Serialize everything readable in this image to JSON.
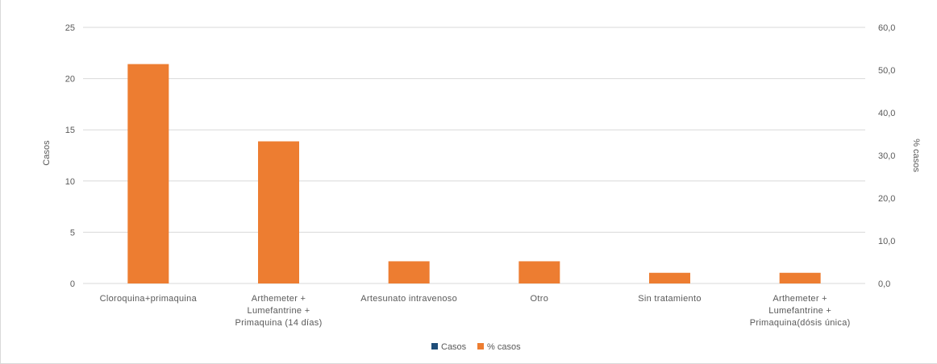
{
  "colors": {
    "casos": "#1F4E79",
    "pct_casos": "#ED7D31",
    "gridline": "#D9D9D9",
    "text": "#595959"
  },
  "chart_data": {
    "type": "bar",
    "title": "",
    "ylabel": "Casos",
    "y2label": "% casos",
    "ylim": [
      0,
      25
    ],
    "y2lim": [
      0,
      60
    ],
    "yticks": [
      "0",
      "5",
      "10",
      "15",
      "20",
      "25"
    ],
    "y2ticks": [
      "0,0",
      "10,0",
      "20,0",
      "30,0",
      "40,0",
      "50,0",
      "60,0"
    ],
    "grid": true,
    "legend_position": "bottom",
    "categories": [
      [
        "Cloroquina+primaquina"
      ],
      [
        "Arthemeter +",
        "Lumefantrine +",
        "Primaquina (14 días)"
      ],
      [
        "Artesunato intravenoso"
      ],
      [
        "Otro"
      ],
      [
        "Sin tratamiento"
      ],
      [
        "Arthemeter +",
        "Lumefantrine +",
        "Primaquina(dósis única)"
      ]
    ],
    "series": [
      {
        "name": "Casos",
        "axis": "left",
        "color": "#1F4E79",
        "values": [
          null,
          null,
          null,
          null,
          null,
          null
        ]
      },
      {
        "name": "% casos",
        "axis": "right",
        "color": "#ED7D31",
        "values": [
          51.4,
          33.3,
          5.2,
          5.2,
          2.5,
          2.5
        ]
      }
    ]
  }
}
